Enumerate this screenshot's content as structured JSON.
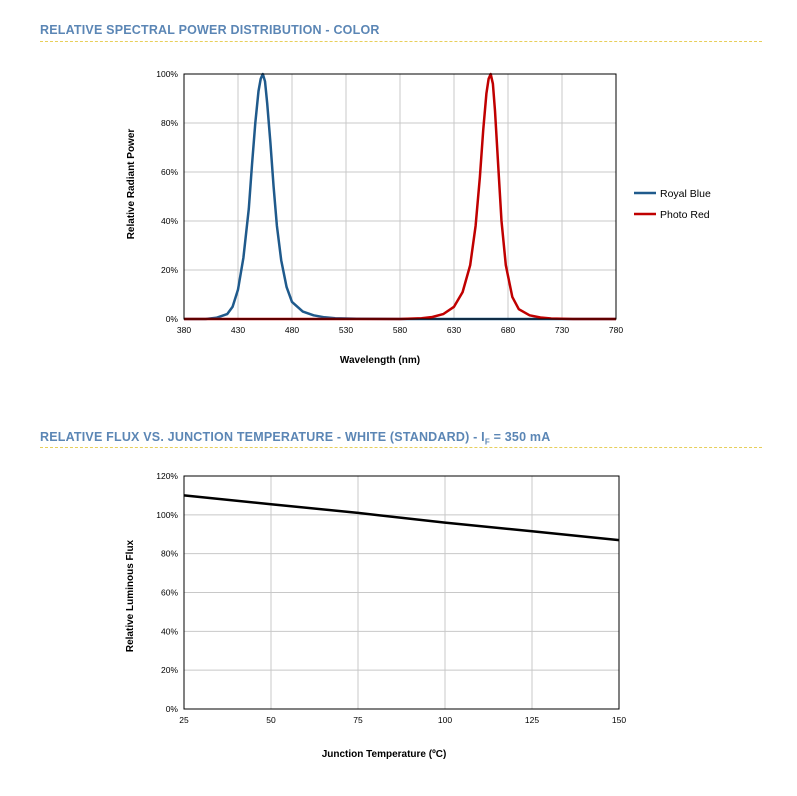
{
  "sections": [
    {
      "title": "RELATIVE SPECTRAL POWER DISTRIBUTION - COLOR"
    },
    {
      "title_main": "RELATIVE FLUX VS. JUNCTION TEMPERATURE - WHITE (STANDARD) - I",
      "title_sub": "F",
      "title_tail": " = 350 mA"
    }
  ],
  "colors": {
    "title": "#5b86b5",
    "rule": "#e8cf5a",
    "royal_blue": "#1f5a8c",
    "photo_red": "#c00000",
    "flux_line": "#000000",
    "grid": "#c8c8c8"
  },
  "chart_data": [
    {
      "type": "line",
      "xlabel": "Wavelength (nm)",
      "ylabel": "Relative Radiant Power",
      "xlim": [
        380,
        780
      ],
      "ylim": [
        0,
        100
      ],
      "xticks": [
        380,
        430,
        480,
        530,
        580,
        630,
        680,
        730,
        780
      ],
      "yticks": [
        0,
        20,
        40,
        60,
        80,
        100
      ],
      "xtick_labels": [
        "380",
        "430",
        "480",
        "530",
        "580",
        "630",
        "680",
        "730",
        "780"
      ],
      "ytick_labels": [
        "0%",
        "20%",
        "40%",
        "60%",
        "80%",
        "100%"
      ],
      "grid": true,
      "legend_position": "right",
      "series": [
        {
          "name": "Royal Blue",
          "color": "#1f5a8c",
          "x": [
            380,
            400,
            410,
            420,
            425,
            430,
            435,
            440,
            443,
            446,
            449,
            451,
            453,
            455,
            457,
            460,
            463,
            466,
            470,
            475,
            480,
            490,
            500,
            510,
            520,
            540,
            580,
            780
          ],
          "y": [
            0,
            0,
            0.5,
            2,
            5,
            12,
            25,
            45,
            63,
            80,
            93,
            98,
            100,
            97,
            88,
            72,
            54,
            38,
            24,
            13,
            7,
            3,
            1.5,
            0.7,
            0.3,
            0.1,
            0,
            0
          ]
        },
        {
          "name": "Photo Red",
          "color": "#c00000",
          "x": [
            380,
            580,
            600,
            610,
            620,
            630,
            638,
            645,
            650,
            654,
            657,
            660,
            662,
            664,
            666,
            668,
            671,
            674,
            678,
            684,
            690,
            700,
            710,
            720,
            740,
            780
          ],
          "y": [
            0,
            0,
            0.3,
            0.8,
            2,
            5,
            11,
            22,
            38,
            58,
            77,
            92,
            98,
            100,
            96,
            85,
            62,
            40,
            22,
            9,
            4,
            1.5,
            0.6,
            0.2,
            0,
            0
          ]
        }
      ]
    },
    {
      "type": "line",
      "xlabel": "Junction Temperature (ºC)",
      "ylabel": "Relative Luminous Flux",
      "xlim": [
        25,
        150
      ],
      "ylim": [
        0,
        120
      ],
      "xticks": [
        25,
        50,
        75,
        100,
        125,
        150
      ],
      "yticks": [
        0,
        20,
        40,
        60,
        80,
        100,
        120
      ],
      "xtick_labels": [
        "25",
        "50",
        "75",
        "100",
        "125",
        "150"
      ],
      "ytick_labels": [
        "0%",
        "20%",
        "40%",
        "60%",
        "80%",
        "100%",
        "120%"
      ],
      "grid": true,
      "series": [
        {
          "color": "#000000",
          "x": [
            25,
            50,
            75,
            100,
            125,
            150
          ],
          "y": [
            110,
            105.5,
            101,
            96,
            91.5,
            87
          ]
        }
      ]
    }
  ]
}
